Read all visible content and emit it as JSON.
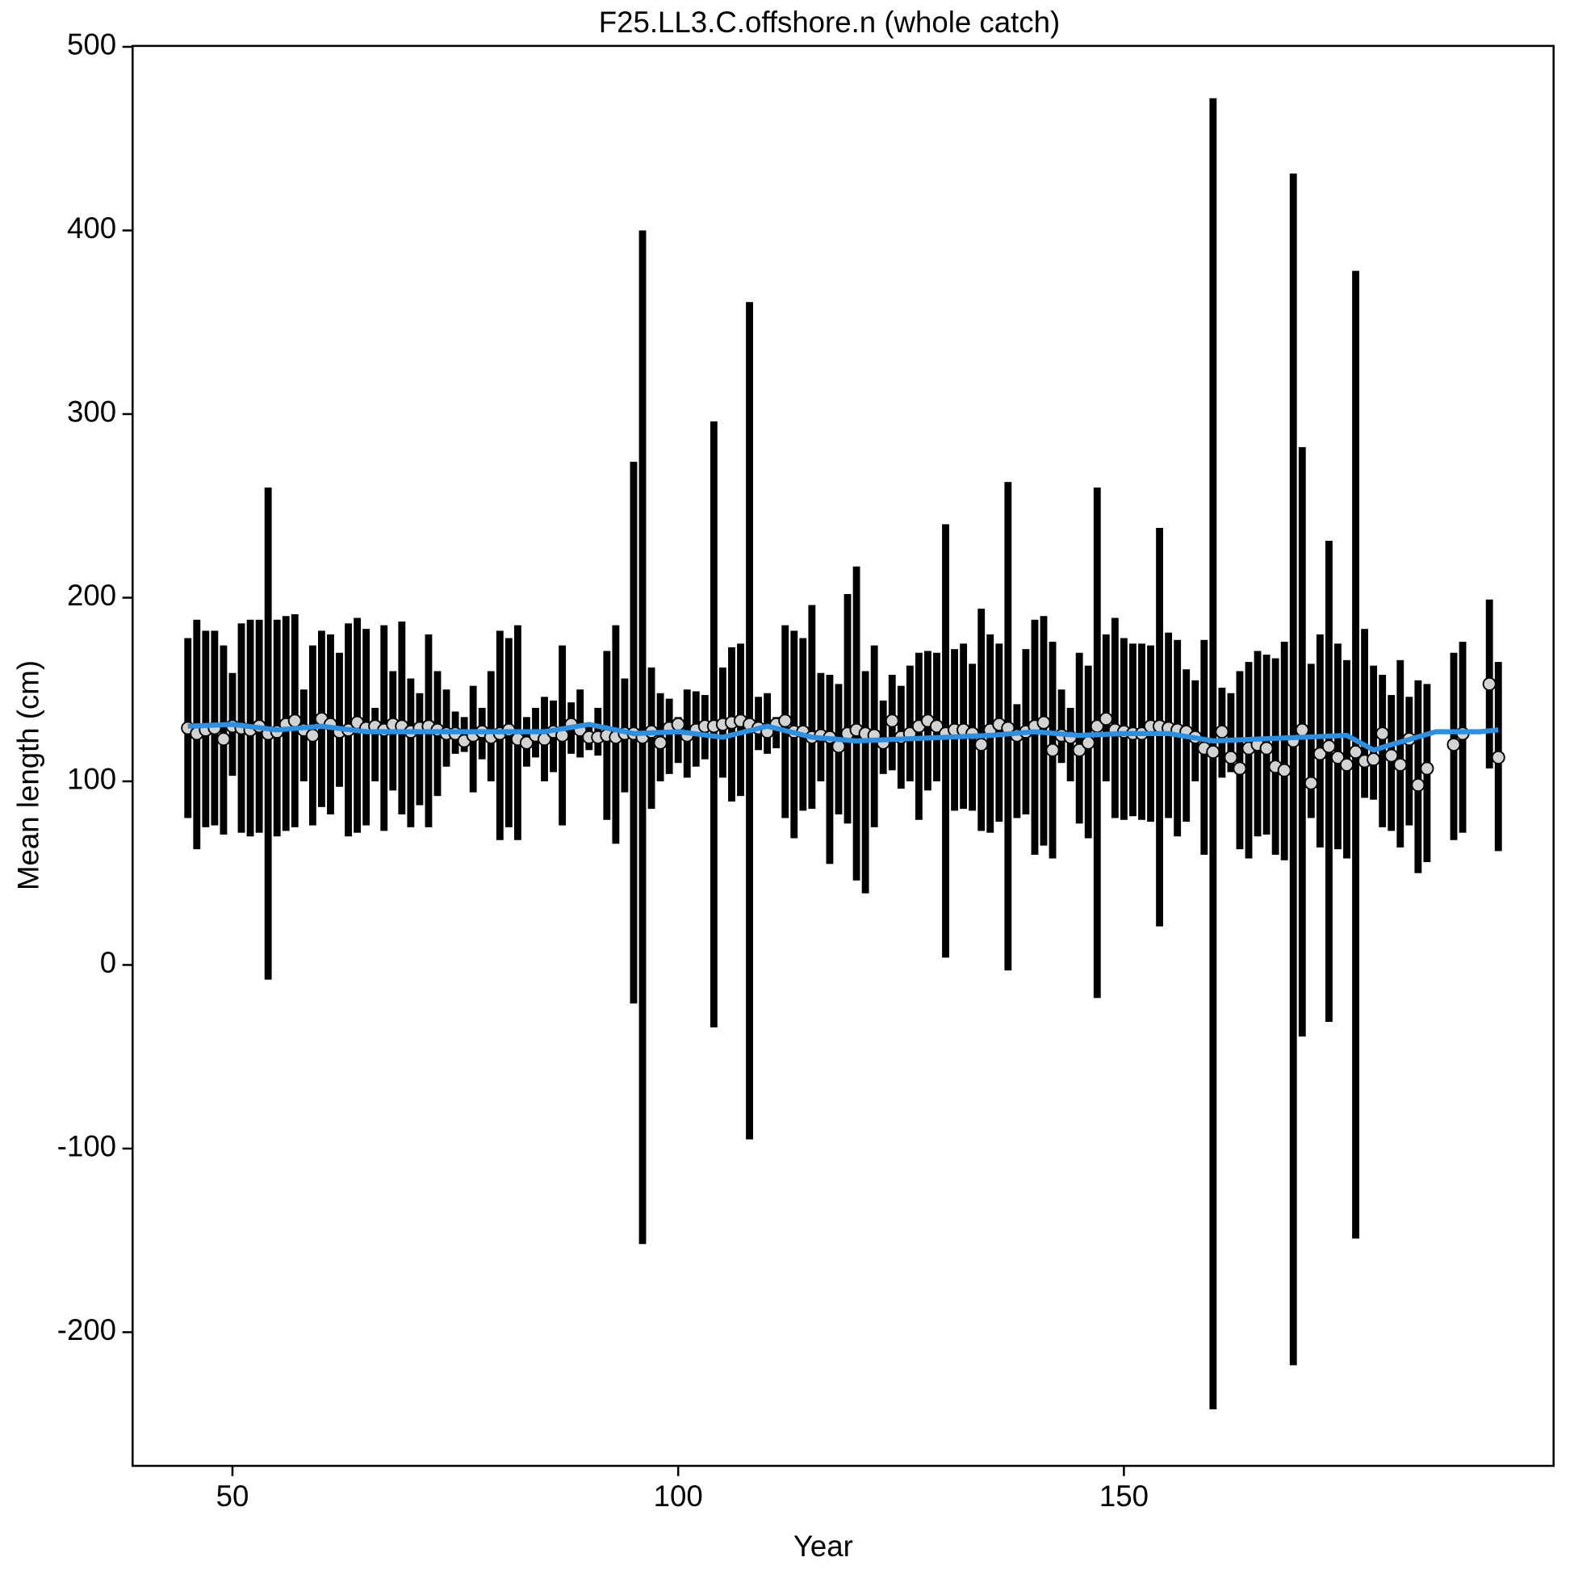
{
  "chart_data": {
    "type": "errorbar",
    "title": "F25.LL3.C.offshore.n (whole catch)",
    "x_label": "Year",
    "y_label": "Mean length (cm)",
    "xlim": [
      38.8,
      198.2
    ],
    "ylim": [
      -272.8,
      500.5
    ],
    "xticks": [
      50,
      100,
      150
    ],
    "yticks": [
      -200,
      -100,
      0,
      100,
      200,
      300,
      400,
      500
    ],
    "bar_color": "#000000",
    "point_color": "#d3d3d3",
    "x": [
      45,
      46,
      47,
      48,
      49,
      50,
      51,
      52,
      53,
      54,
      55,
      56,
      57,
      58,
      59,
      60,
      61,
      62,
      63,
      64,
      65,
      66,
      67,
      68,
      69,
      70,
      71,
      72,
      73,
      74,
      75,
      76,
      77,
      78,
      79,
      80,
      81,
      82,
      83,
      84,
      85,
      86,
      87,
      88,
      89,
      90,
      91,
      92,
      93,
      94,
      95,
      96,
      97,
      98,
      99,
      100,
      101,
      102,
      103,
      104,
      105,
      106,
      107,
      108,
      109,
      110,
      111,
      112,
      113,
      114,
      115,
      116,
      117,
      118,
      119,
      120,
      121,
      122,
      123,
      124,
      125,
      126,
      127,
      128,
      129,
      130,
      131,
      132,
      133,
      134,
      135,
      136,
      137,
      138,
      139,
      140,
      141,
      142,
      143,
      144,
      145,
      146,
      147,
      148,
      149,
      150,
      151,
      152,
      153,
      154,
      155,
      156,
      157,
      158,
      159,
      160,
      161,
      162,
      163,
      164,
      165,
      166,
      167,
      168,
      169,
      170,
      171,
      172,
      173,
      174,
      175,
      176,
      177,
      178,
      179,
      180,
      181,
      182,
      183,
      184,
      187,
      188,
      191,
      192
    ],
    "values": [
      129,
      126,
      128,
      129,
      123,
      130,
      129,
      128,
      130,
      126,
      127,
      131,
      133,
      128,
      125,
      134,
      131,
      127,
      128,
      132,
      129,
      130,
      128,
      131,
      130,
      127,
      129,
      130,
      128,
      126,
      126,
      122,
      125,
      127,
      124,
      126,
      128,
      123,
      121,
      125,
      123,
      127,
      125,
      131,
      128,
      124,
      124,
      125,
      124,
      126,
      126,
      124,
      127,
      121,
      129,
      131,
      125,
      128,
      130,
      130,
      131,
      132,
      133,
      131,
      129,
      127,
      131,
      133,
      127,
      127,
      124,
      125,
      124,
      119,
      126,
      128,
      126,
      125,
      121,
      133,
      124,
      126,
      130,
      133,
      130,
      126,
      128,
      128,
      126,
      120,
      128,
      131,
      129,
      125,
      127,
      130,
      132,
      117,
      125,
      124,
      117,
      121,
      130,
      134,
      128,
      127,
      126,
      126,
      130,
      130,
      129,
      128,
      127,
      124,
      118,
      116,
      127,
      113,
      107,
      118,
      120,
      118,
      108,
      106,
      122,
      128,
      99,
      115,
      119,
      113,
      109,
      116,
      111,
      112,
      126,
      114,
      109,
      123,
      98,
      107,
      120,
      126,
      153,
      113
    ],
    "lower": [
      80,
      63,
      75,
      76,
      71,
      103,
      72,
      70,
      72,
      -8,
      70,
      73,
      75,
      100,
      76,
      86,
      82,
      97,
      70,
      72,
      76,
      100,
      73,
      95,
      82,
      75,
      87,
      75,
      92,
      108,
      115,
      116,
      94,
      112,
      100,
      68,
      75,
      68,
      108,
      113,
      100,
      105,
      76,
      115,
      113,
      117,
      114,
      79,
      66,
      94,
      -21,
      -152,
      85,
      100,
      104,
      110,
      102,
      108,
      112,
      -34,
      102,
      89,
      92,
      -95,
      117,
      115,
      118,
      80,
      69,
      84,
      85,
      100,
      55,
      82,
      77,
      46,
      39,
      75,
      104,
      106,
      96,
      100,
      79,
      95,
      100,
      4,
      84,
      85,
      84,
      73,
      72,
      78,
      -3,
      80,
      82,
      60,
      65,
      58,
      110,
      100,
      77,
      69,
      -18,
      100,
      80,
      79,
      81,
      79,
      78,
      21,
      80,
      70,
      78,
      100,
      60,
      -242,
      102,
      105,
      63,
      58,
      70,
      71,
      60,
      57,
      -218,
      -39,
      80,
      64,
      -31,
      63,
      58,
      -149,
      91,
      90,
      75,
      73,
      64,
      76,
      50,
      56,
      68,
      72,
      107,
      62
    ],
    "upper": [
      178,
      188,
      182,
      182,
      174,
      159,
      186,
      188,
      188,
      260,
      188,
      190,
      191,
      150,
      174,
      182,
      180,
      170,
      186,
      189,
      183,
      140,
      185,
      160,
      187,
      156,
      148,
      180,
      160,
      150,
      138,
      135,
      152,
      140,
      160,
      182,
      178,
      185,
      135,
      140,
      146,
      144,
      174,
      143,
      150,
      132,
      140,
      171,
      185,
      156,
      274,
      400,
      162,
      148,
      145,
      135,
      150,
      149,
      147,
      296,
      162,
      173,
      175,
      361,
      146,
      148,
      135,
      185,
      182,
      178,
      196,
      159,
      158,
      153,
      202,
      217,
      160,
      174,
      144,
      158,
      152,
      163,
      170,
      171,
      170,
      240,
      172,
      175,
      164,
      194,
      180,
      175,
      263,
      142,
      172,
      188,
      190,
      176,
      150,
      140,
      170,
      163,
      260,
      180,
      189,
      178,
      175,
      175,
      174,
      238,
      181,
      177,
      161,
      155,
      177,
      472,
      151,
      148,
      160,
      165,
      171,
      169,
      167,
      176,
      431,
      282,
      164,
      180,
      231,
      175,
      166,
      378,
      183,
      163,
      158,
      147,
      166,
      146,
      155,
      153,
      170,
      176,
      199,
      165
    ],
    "smooth": {
      "color": "#2e8fdf",
      "x": [
        45,
        50,
        55,
        60,
        65,
        70,
        75,
        80,
        85,
        90,
        95,
        100,
        105,
        110,
        115,
        120,
        125,
        130,
        135,
        140,
        145,
        150,
        155,
        160,
        165,
        170,
        175,
        178,
        180,
        185,
        190,
        192
      ],
      "values": [
        130,
        131,
        128,
        130,
        127,
        127,
        127,
        127,
        127,
        131,
        126,
        127,
        124,
        130,
        124,
        122,
        123,
        124,
        125,
        127,
        125,
        126,
        126,
        122,
        123,
        124,
        125,
        117,
        120,
        127,
        127,
        128
      ]
    }
  }
}
